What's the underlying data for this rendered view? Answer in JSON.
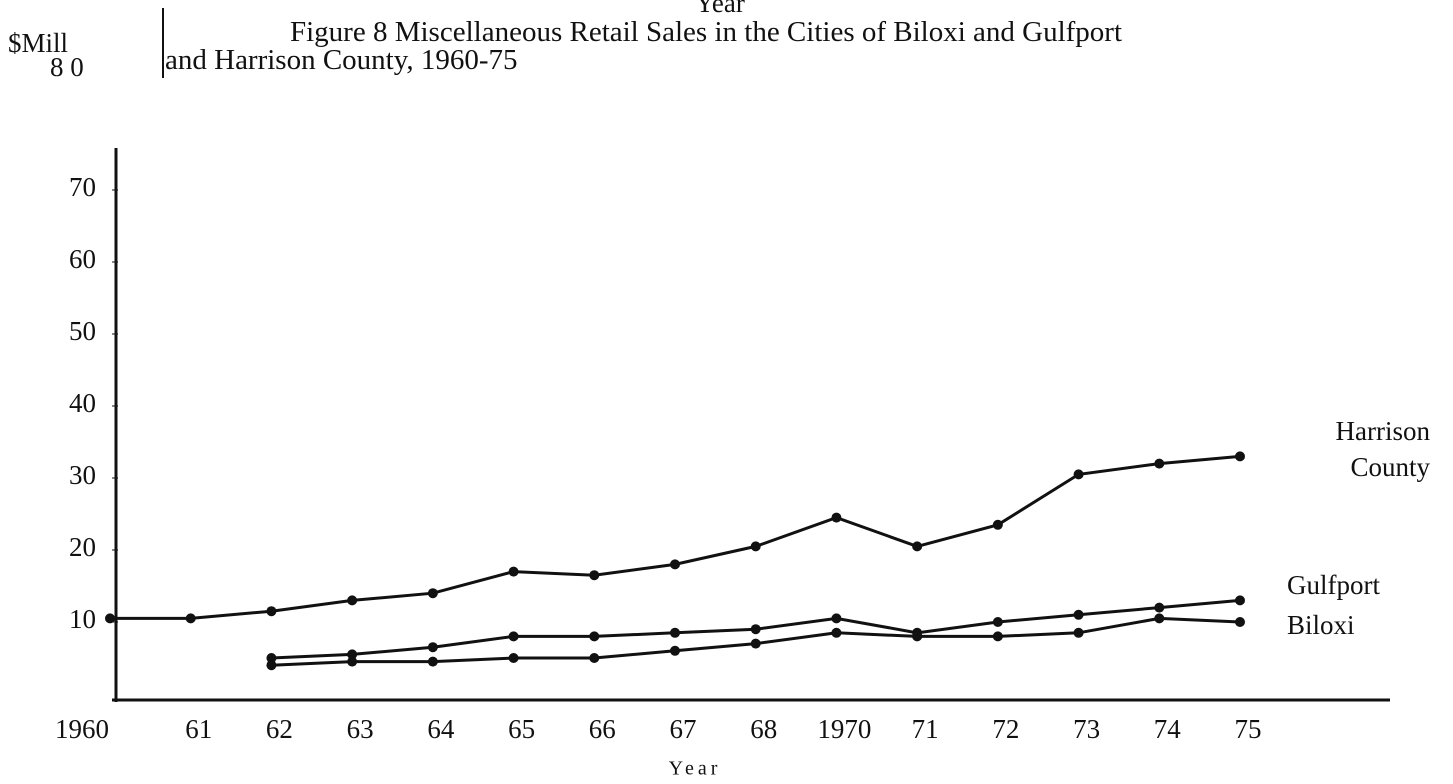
{
  "chart_data": {
    "type": "line",
    "title": "Figure 8 Miscellaneous Retail Sales in the Cities of Biloxi and Gulfport and Harrison County, 1960-75",
    "top_label": "Year",
    "y_unit": "$Mill",
    "y_unit_annotation": "8 0",
    "x_label": "Year",
    "categories": [
      "1960",
      "61",
      "62",
      "63",
      "64",
      "65",
      "66",
      "67",
      "68",
      "1970",
      "71",
      "72",
      "73",
      "74",
      "75"
    ],
    "series": [
      {
        "name": "Harrison County",
        "color": "#111111",
        "values": [
          10.5,
          10.5,
          11.5,
          13,
          14,
          17,
          16.5,
          18,
          20.5,
          24.5,
          20.5,
          23.5,
          30.5,
          32,
          33
        ]
      },
      {
        "name": "Gulfport",
        "color": "#111111",
        "values": [
          null,
          null,
          5,
          5.5,
          6.5,
          8,
          8,
          8.5,
          9,
          10.5,
          8.5,
          10,
          11,
          12,
          13
        ]
      },
      {
        "name": "Biloxi",
        "color": "#111111",
        "values": [
          null,
          null,
          4,
          4.5,
          4.5,
          5,
          5,
          6,
          7,
          8.5,
          8,
          8,
          8.5,
          10.5,
          10
        ]
      }
    ],
    "ylim": [
      0,
      70
    ],
    "yticks": [
      10,
      20,
      30,
      40,
      50,
      60,
      70
    ],
    "grid": false
  }
}
